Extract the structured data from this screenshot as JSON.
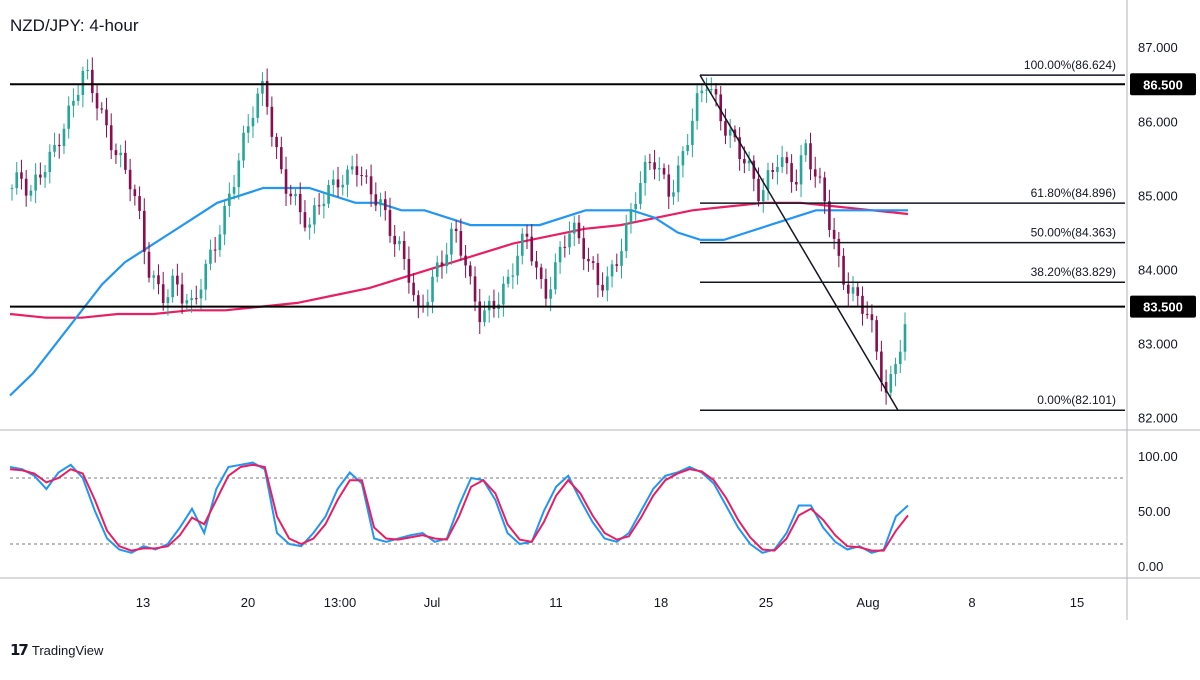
{
  "header": {
    "title": "NZD/JPY: 4-hour"
  },
  "branding": {
    "logo_glyph": "17",
    "name": "TradingView"
  },
  "colors": {
    "bull_candle": "#26a69a",
    "bear_candle": "#880e4f",
    "ma_fast": "#2196f3",
    "ma_slow": "#e91e63",
    "stoch_k": "#2196f3",
    "stoch_d": "#e91e63",
    "level_line": "#000000",
    "fib_line": "#131722",
    "trend_line": "#131722",
    "price_label_bg": "#000000",
    "price_label_text": "#ffffff"
  },
  "chart_data": [
    {
      "type": "candlestick",
      "title": "NZD/JPY: 4-hour",
      "ylim": [
        81.6,
        87.6
      ],
      "y_ticks": [
        "87.000",
        "86.000",
        "85.000",
        "84.000",
        "83.000",
        "82.000"
      ],
      "x_ticks": [
        "13",
        "20",
        "13:00",
        "Jul",
        "11",
        "18",
        "25",
        "Aug",
        "8",
        "15"
      ],
      "grid": false,
      "legend": "none",
      "horizontal_levels": [
        {
          "value": 86.5,
          "label": "86.500"
        },
        {
          "value": 83.5,
          "label": "83.500"
        }
      ],
      "fibonacci": [
        {
          "ratio": "100.00%",
          "value": 86.624,
          "label": "100.00%(86.624)"
        },
        {
          "ratio": "61.80%",
          "value": 84.896,
          "label": "61.80%(84.896)"
        },
        {
          "ratio": "50.00%",
          "value": 84.363,
          "label": "50.00%(84.363)"
        },
        {
          "ratio": "38.20%",
          "value": 83.829,
          "label": "38.20%(83.829)"
        },
        {
          "ratio": "0.00%",
          "value": 82.101,
          "label": "0.00%(82.101)"
        }
      ],
      "trendline": {
        "from": 86.624,
        "to": 82.101
      },
      "price_path": [
        85.1,
        85.2,
        84.9,
        85.3,
        85.5,
        85.8,
        86.0,
        86.3,
        86.6,
        86.4,
        86.1,
        85.8,
        85.5,
        85.2,
        84.7,
        84.0,
        83.8,
        83.7,
        83.9,
        83.6,
        83.4,
        83.8,
        84.2,
        84.6,
        85.0,
        85.4,
        85.8,
        86.2,
        86.5,
        85.8,
        85.3,
        85.0,
        84.7,
        84.5,
        84.9,
        85.1,
        85.3,
        85.2,
        85.4,
        85.1,
        85.0,
        84.9,
        84.6,
        84.3,
        83.9,
        83.3,
        83.6,
        84.0,
        84.3,
        84.6,
        84.2,
        83.6,
        83.3,
        83.5,
        83.7,
        83.9,
        84.2,
        84.4,
        84.0,
        83.6,
        84.0,
        84.4,
        84.6,
        84.3,
        84.0,
        83.8,
        83.9,
        84.2,
        84.5,
        84.9,
        85.2,
        85.5,
        85.3,
        85.1,
        85.4,
        85.8,
        86.2,
        86.5,
        86.3,
        86.0,
        85.8,
        85.5,
        85.2,
        84.9,
        85.3,
        85.6,
        85.4,
        85.2,
        85.6,
        85.2,
        85.0,
        84.5,
        84.0,
        83.7,
        83.5,
        83.3,
        82.8,
        82.3,
        82.9,
        83.2
      ],
      "ma_fast_path": [
        82.3,
        82.6,
        83.0,
        83.4,
        83.8,
        84.1,
        84.3,
        84.5,
        84.7,
        84.9,
        85.0,
        85.1,
        85.1,
        85.1,
        85.0,
        84.9,
        84.9,
        84.8,
        84.8,
        84.7,
        84.6,
        84.6,
        84.6,
        84.6,
        84.7,
        84.8,
        84.8,
        84.8,
        84.7,
        84.5,
        84.4,
        84.4,
        84.5,
        84.6,
        84.7,
        84.8,
        84.8,
        84.8,
        84.8,
        84.8
      ],
      "ma_slow_path": [
        83.4,
        83.35,
        83.35,
        83.4,
        83.4,
        83.45,
        83.45,
        83.5,
        83.55,
        83.65,
        83.75,
        83.9,
        84.05,
        84.2,
        84.35,
        84.45,
        84.55,
        84.6,
        84.7,
        84.8,
        84.85,
        84.9,
        84.9,
        84.85,
        84.8,
        84.75
      ]
    },
    {
      "type": "line",
      "title": "",
      "ylim": [
        -10,
        110
      ],
      "y_ticks": [
        "100.00",
        "50.00",
        "0.00"
      ],
      "reference_lines": [
        80,
        20
      ],
      "series": [
        {
          "values": [
            90,
            88,
            82,
            70,
            85,
            92,
            80,
            50,
            25,
            15,
            12,
            18,
            15,
            20,
            35,
            52,
            30,
            70,
            90,
            92,
            94,
            88,
            30,
            20,
            18,
            30,
            45,
            70,
            85,
            75,
            25,
            22,
            25,
            28,
            30,
            22,
            25,
            55,
            80,
            78,
            60,
            30,
            20,
            22,
            50,
            72,
            82,
            60,
            40,
            25,
            22,
            30,
            50,
            70,
            82,
            85,
            90,
            85,
            75,
            55,
            35,
            20,
            12,
            15,
            30,
            55,
            55,
            35,
            22,
            15,
            18,
            12,
            15,
            45,
            55
          ]
        },
        {
          "values": [
            88,
            87,
            84,
            76,
            80,
            88,
            84,
            60,
            32,
            18,
            14,
            16,
            16,
            18,
            28,
            44,
            38,
            60,
            82,
            90,
            92,
            90,
            45,
            25,
            20,
            25,
            38,
            60,
            78,
            78,
            35,
            25,
            24,
            26,
            28,
            25,
            24,
            45,
            72,
            78,
            66,
            38,
            24,
            22,
            40,
            64,
            78,
            66,
            46,
            30,
            24,
            27,
            44,
            64,
            78,
            84,
            88,
            86,
            78,
            62,
            42,
            26,
            15,
            14,
            25,
            46,
            52,
            42,
            28,
            18,
            17,
            14,
            14,
            32,
            46
          ]
        }
      ]
    }
  ]
}
